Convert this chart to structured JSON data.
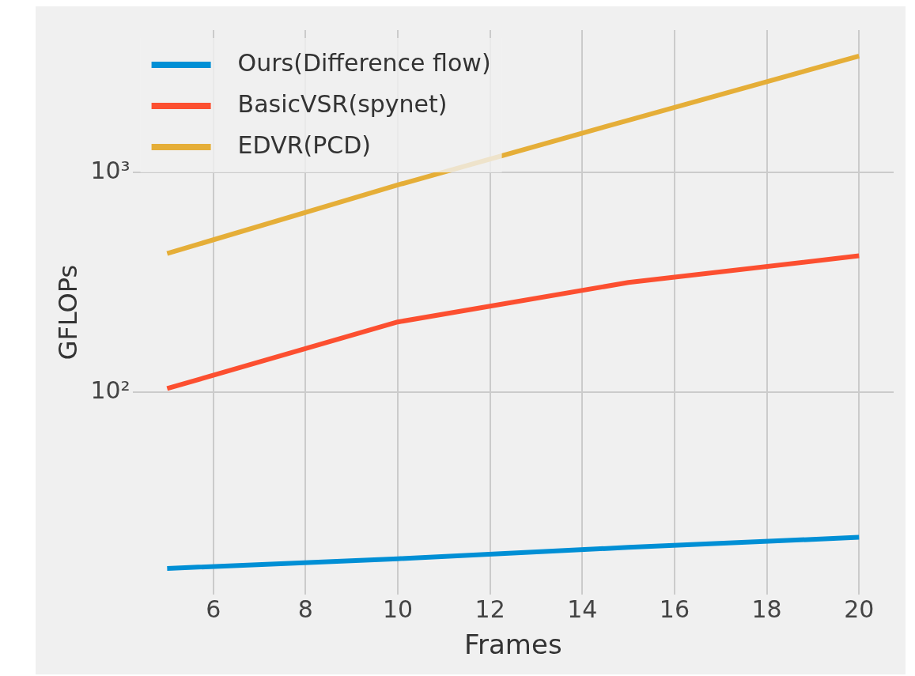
{
  "chart_data": {
    "type": "line",
    "xlabel": "Frames",
    "ylabel": "GFLOPs",
    "log": "y",
    "grid": true,
    "legend": "top left",
    "xlim": [
      4.25,
      20.75
    ],
    "xticks": [
      6,
      8,
      10,
      12,
      14,
      16,
      18,
      20
    ],
    "ylim": [
      12,
      4450
    ],
    "yticks": [
      {
        "value": 100,
        "label": "10²"
      },
      {
        "value": 1000,
        "label": "10³"
      }
    ],
    "x": [
      5,
      10,
      15,
      20
    ],
    "series": [
      {
        "name": "Ours(Difference flow)",
        "color": "#008fd5",
        "values": [
          15.8,
          17.5,
          19.7,
          21.9
        ]
      },
      {
        "name": "BasicVSR(spynet)",
        "color": "#fc4f30",
        "values": [
          104,
          209,
          316,
          418
        ]
      },
      {
        "name": "EDVR(PCD)",
        "color": "#e5ae38",
        "values": [
          428,
          878,
          1730,
          3390
        ]
      }
    ]
  }
}
